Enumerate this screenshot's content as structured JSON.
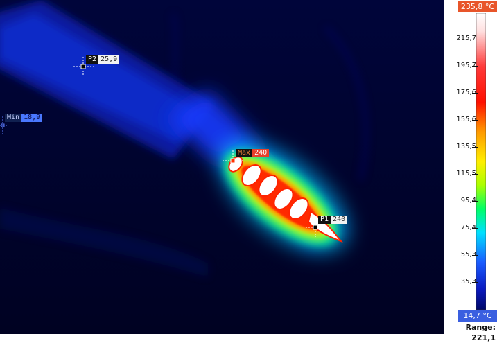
{
  "markers": {
    "p2": {
      "name": "P2",
      "value": "25,9"
    },
    "min": {
      "name": "Min",
      "value": "18,9"
    },
    "max": {
      "name": "Max",
      "value": "240"
    },
    "p1": {
      "name": "P1",
      "value": "240"
    }
  },
  "scale": {
    "max_label": "235,8 °C",
    "min_label": "14,7 °C",
    "range_label": "Range: 221,1",
    "ticks": [
      "215,7",
      "195,7",
      "175,6",
      "155,6",
      "135,5",
      "115,5",
      "95,4",
      "75,4",
      "55,3",
      "35,3"
    ]
  },
  "colors": {
    "background": "#00032a",
    "hot": "#ffffff",
    "accent_max": "#e8552a",
    "accent_min": "#3a5fe0"
  }
}
